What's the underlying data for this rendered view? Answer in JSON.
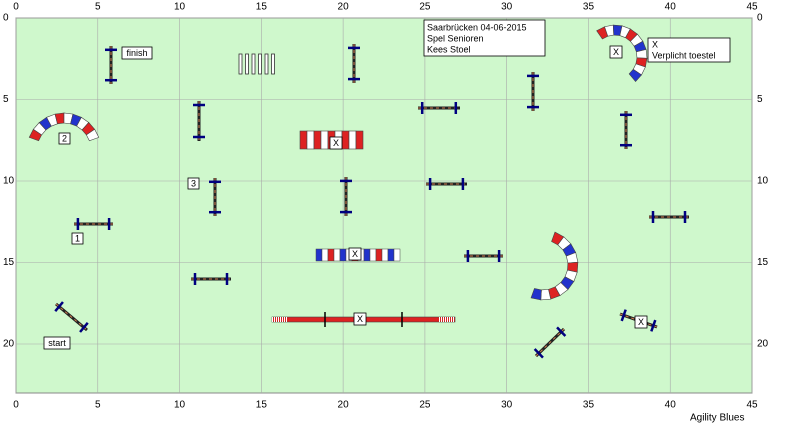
{
  "axes": {
    "xticks": [
      0,
      5,
      10,
      15,
      20,
      25,
      30,
      35,
      40,
      45
    ],
    "yticks": [
      0,
      5,
      10,
      15,
      20
    ]
  },
  "info_box": {
    "lines": [
      "Saarbrücken 04-06-2015",
      "Spel Senioren",
      "Kees Stoel"
    ]
  },
  "legend": {
    "marker": "X",
    "text": "Verplicht toestel"
  },
  "labels": [
    "finish",
    "start",
    "1",
    "2",
    "3"
  ],
  "markers": [
    "X",
    "X",
    "X",
    "X",
    "X"
  ],
  "footer": "Agility Blues"
}
